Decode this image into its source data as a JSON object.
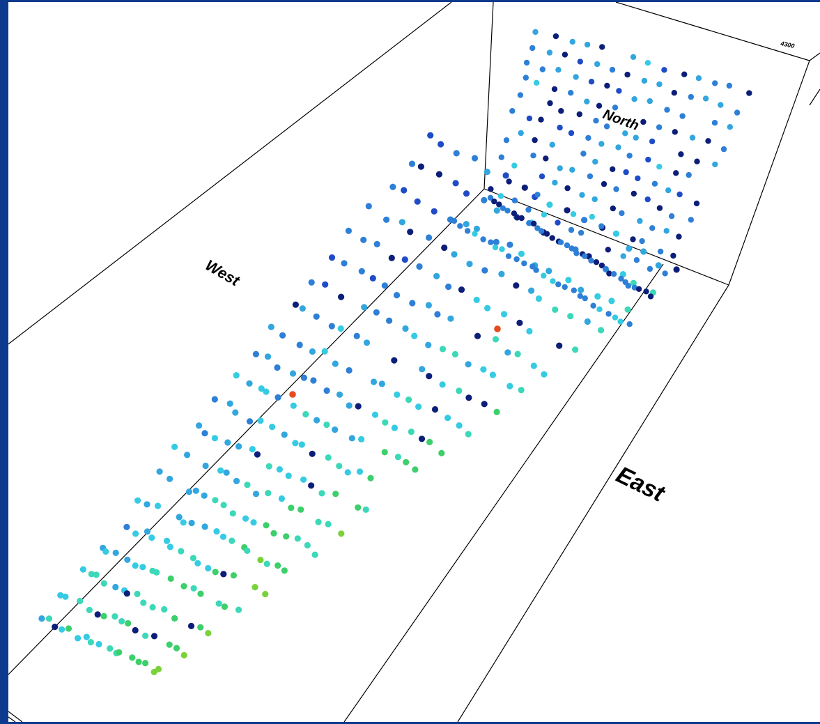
{
  "labels": {
    "north": "North",
    "west": "West",
    "east": "East",
    "tick": "4300"
  },
  "colors": {
    "background": "#0b3a8f",
    "panel": "#ffffff",
    "lines": "#000000",
    "dot_palette": [
      "#0d1e78",
      "#1f4cc6",
      "#2e7fd6",
      "#32a6de",
      "#35cbe3",
      "#3cd8b8",
      "#3ccf6a",
      "#7ad23a",
      "#e64a1e"
    ]
  }
}
